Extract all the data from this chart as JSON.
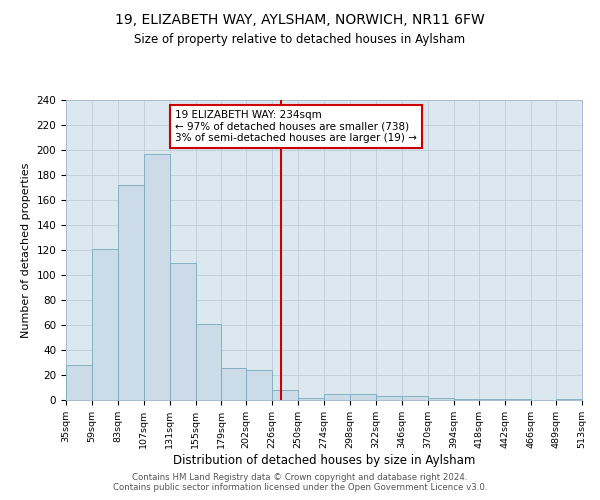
{
  "title": "19, ELIZABETH WAY, AYLSHAM, NORWICH, NR11 6FW",
  "subtitle": "Size of property relative to detached houses in Aylsham",
  "xlabel": "Distribution of detached houses by size in Aylsham",
  "ylabel": "Number of detached properties",
  "footer_line1": "Contains HM Land Registry data © Crown copyright and database right 2024.",
  "footer_line2": "Contains public sector information licensed under the Open Government Licence v3.0.",
  "bin_edges": [
    35,
    59,
    83,
    107,
    131,
    155,
    179,
    202,
    226,
    250,
    274,
    298,
    322,
    346,
    370,
    394,
    418,
    442,
    466,
    489,
    513
  ],
  "bar_heights": [
    28,
    121,
    172,
    197,
    110,
    61,
    26,
    24,
    8,
    2,
    5,
    5,
    3,
    3,
    2,
    1,
    1,
    1,
    0,
    1
  ],
  "property_value": 234,
  "annotation_title": "19 ELIZABETH WAY: 234sqm",
  "annotation_line1": "← 97% of detached houses are smaller (738)",
  "annotation_line2": "3% of semi-detached houses are larger (19) →",
  "bar_color": "#ccdbe8",
  "bar_edge_color": "#7aaabb",
  "line_color": "#cc0000",
  "annotation_box_color": "#cc0000",
  "background_color": "#ffffff",
  "grid_color": "#c0ccd8",
  "ax_bg_color": "#dce8f0",
  "ylim": [
    0,
    240
  ],
  "yticks": [
    0,
    20,
    40,
    60,
    80,
    100,
    120,
    140,
    160,
    180,
    200,
    220,
    240
  ],
  "title_fontsize": 10,
  "subtitle_fontsize": 8.5,
  "ylabel_fontsize": 8,
  "xlabel_fontsize": 8.5,
  "footer_fontsize": 6.2,
  "tick_fontsize": 7.5,
  "xtick_fontsize": 6.8,
  "annotation_fontsize": 7.5
}
